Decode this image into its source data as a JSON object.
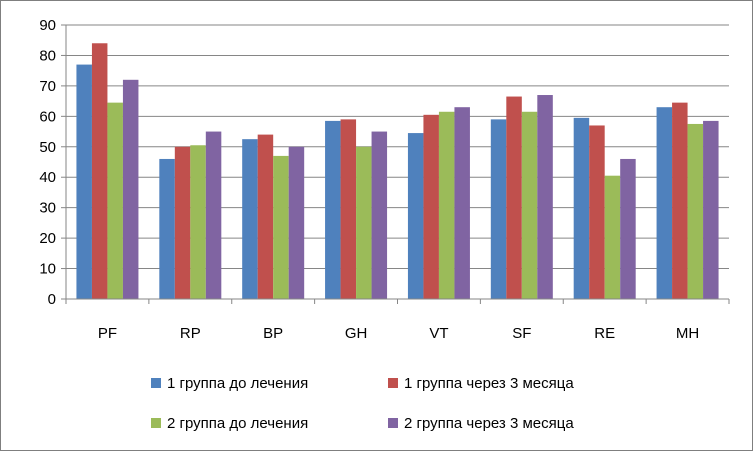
{
  "chart_data": {
    "type": "bar",
    "title": "",
    "xlabel": "",
    "ylabel": "",
    "categories": [
      "PF",
      "RP",
      "BP",
      "GH",
      "VT",
      "SF",
      "RE",
      "MH"
    ],
    "ylim": [
      0,
      90
    ],
    "yticks": [
      0,
      10,
      20,
      30,
      40,
      50,
      60,
      70,
      80,
      90
    ],
    "grid": true,
    "legend": "bottom",
    "series": [
      {
        "name": "1 группа до лечения",
        "color": "#4f81bd",
        "values": [
          77,
          46,
          52.5,
          58.5,
          54.5,
          59,
          59.5,
          63
        ]
      },
      {
        "name": "1 группа через 3 месяца",
        "color": "#c0504d",
        "values": [
          84,
          50,
          54,
          59,
          60.5,
          66.5,
          57,
          64.5
        ]
      },
      {
        "name": "2 группа до лечения",
        "color": "#9bbb59",
        "values": [
          64.5,
          50.5,
          47,
          50,
          61.5,
          61.5,
          40.5,
          57.5
        ]
      },
      {
        "name": "2 группа через 3 месяца",
        "color": "#8064a2",
        "values": [
          72,
          55,
          50,
          55,
          63,
          67,
          46,
          58.5
        ]
      }
    ]
  }
}
